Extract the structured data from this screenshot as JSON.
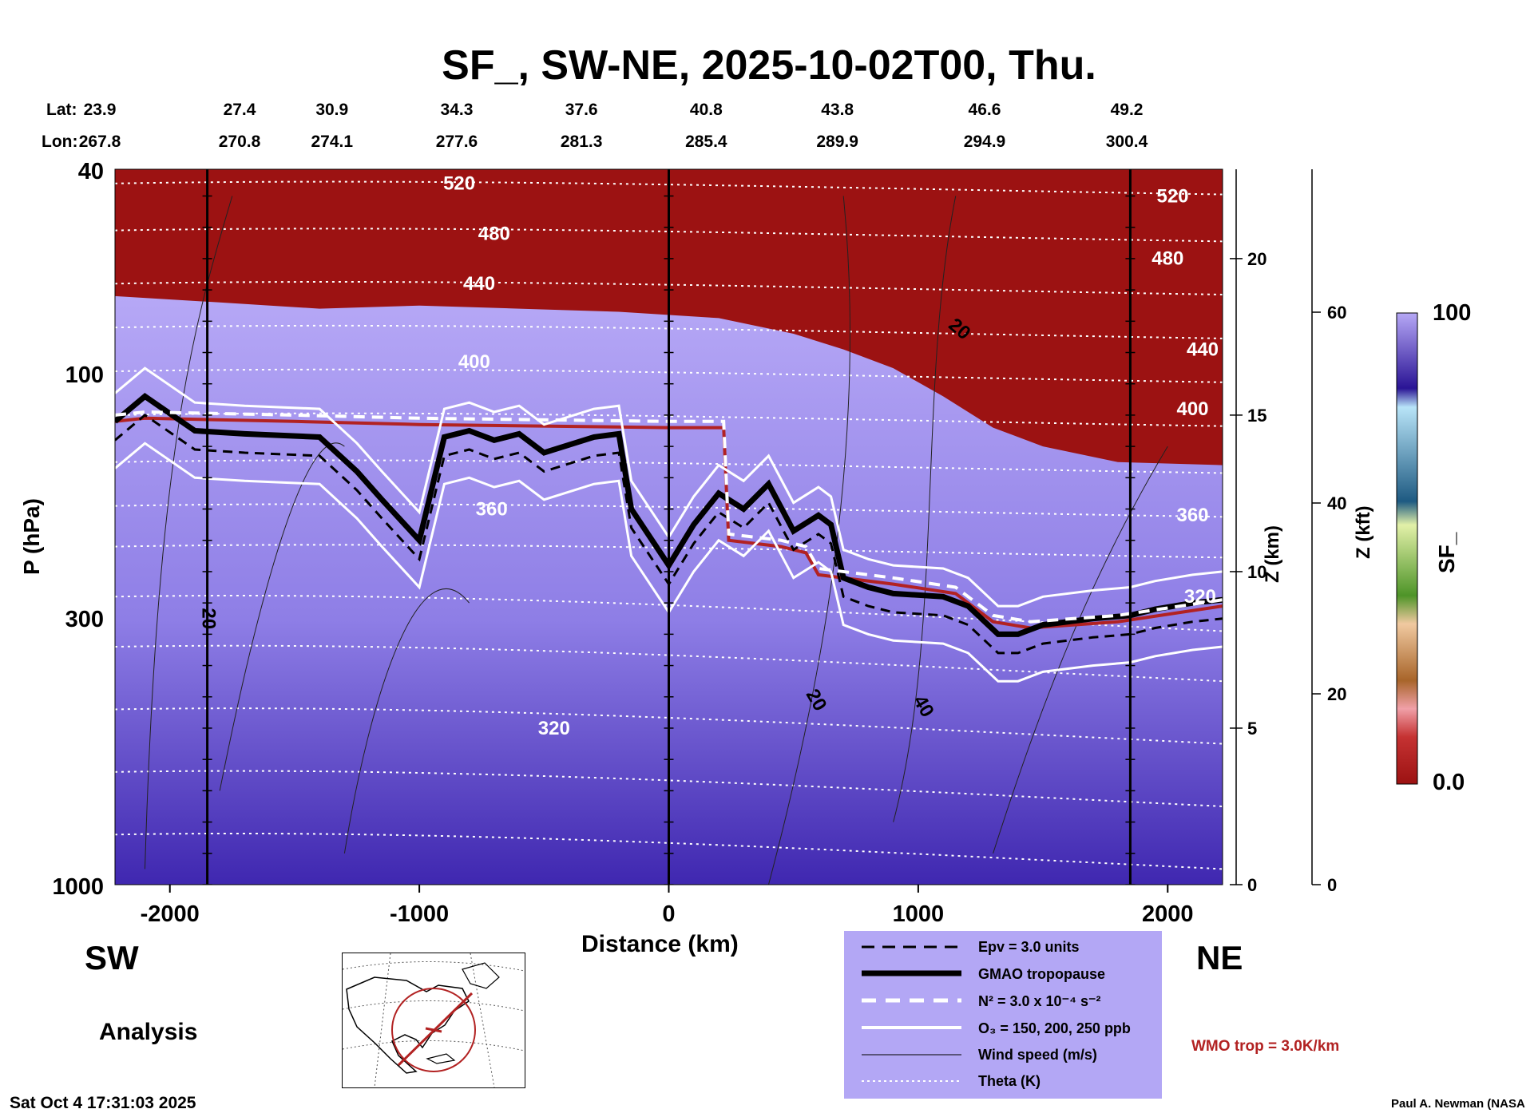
{
  "chart_data": {
    "type": "heatmap",
    "title": "SF_, SW-NE, 2025-10-02T00, Thu.",
    "xlabel": "Distance (km)",
    "ylabel": "P (hPa)",
    "xlim": [
      -2220,
      2220
    ],
    "ylim": [
      1000,
      40
    ],
    "x_ticks": [
      "-2000",
      "-1000",
      "0",
      "1000",
      "2000"
    ],
    "x_tick_values": [
      -2000,
      -1000,
      0,
      1000,
      2000
    ],
    "y_ticks": [
      "40",
      "100",
      "300",
      "1000"
    ],
    "y_tick_values": [
      40,
      100,
      300,
      1000
    ],
    "right_axis_km": {
      "label": "Z (km)",
      "ticks": [
        "20",
        "15",
        "10",
        "5",
        "0"
      ],
      "values": [
        20,
        15,
        10,
        5,
        0
      ]
    },
    "right_axis_kft": {
      "label": "Z (kft)",
      "ticks": [
        "60",
        "40",
        "20",
        "0"
      ],
      "values": [
        60,
        40,
        20,
        0
      ]
    },
    "colorbar": {
      "label": "SF_",
      "max_label": "100",
      "min_label": "0.0"
    },
    "lat_label": "Lat:",
    "lon_label": "Lon:",
    "lat": [
      "23.9",
      "27.4",
      "30.9",
      "34.3",
      "37.6",
      "40.8",
      "43.8",
      "46.6",
      "49.2"
    ],
    "lon": [
      "267.8",
      "270.8",
      "274.1",
      "277.6",
      "281.3",
      "285.4",
      "289.9",
      "294.9",
      "300.4"
    ],
    "theta_labels": [
      "520",
      "480",
      "440",
      "400",
      "360",
      "320",
      "520",
      "480",
      "440",
      "400",
      "360",
      "320"
    ],
    "wind_labels": [
      "20",
      "20",
      "40",
      "20"
    ],
    "tropopause_gmao_km": [
      -2220,
      14.8,
      -2100,
      15.6,
      -1900,
      14.5,
      -1700,
      14.4,
      -1400,
      14.3,
      -1250,
      13.2,
      -1150,
      12.3,
      -1000,
      11.0,
      -900,
      14.3,
      -800,
      14.5,
      -700,
      14.2,
      -600,
      14.4,
      -500,
      13.8,
      -300,
      14.3,
      -200,
      14.4,
      -150,
      12.0,
      0,
      10.2,
      100,
      11.5,
      200,
      12.5,
      300,
      12.0,
      400,
      12.8,
      500,
      11.3,
      600,
      11.8,
      650,
      11.5,
      700,
      9.8,
      800,
      9.5,
      900,
      9.3,
      1100,
      9.2,
      1200,
      8.9,
      1320,
      8.0,
      1400,
      8.0,
      1500,
      8.3,
      1700,
      8.5,
      1850,
      8.6,
      1950,
      8.8,
      2100,
      9.0,
      2220,
      9.1
    ],
    "wmo_tropopause_km": [
      -2220,
      14.8,
      -2100,
      14.9,
      -1500,
      14.8,
      -1000,
      14.7,
      0,
      14.6,
      220,
      14.6,
      240,
      11.0,
      450,
      10.8,
      550,
      10.6,
      600,
      9.9,
      900,
      9.6,
      1150,
      9.3,
      1300,
      8.4,
      1450,
      8.2,
      1800,
      8.4,
      2220,
      8.9
    ],
    "legend": [
      {
        "style": "dashed-black",
        "label": "Epv = 3.0 units"
      },
      {
        "style": "thick-black",
        "label": "GMAO tropopause"
      },
      {
        "style": "dashed-white",
        "label": "N² = 3.0 x 10⁻⁴ s⁻²"
      },
      {
        "style": "solid-white",
        "label": "O₃ = 150, 200, 250 ppb"
      },
      {
        "style": "thin-black",
        "label": "Wind speed (m/s)"
      },
      {
        "style": "dotted-white",
        "label": "Theta (K)"
      }
    ],
    "wmo_note": "WMO trop = 3.0K/km",
    "region_left": "SW",
    "region_right": "NE",
    "analysis_label": "Analysis"
  },
  "footer": {
    "timestamp": "Sat Oct  4 17:31:03 2025",
    "credit": "Paul A. Newman (NASA"
  },
  "colors": {
    "red": "#9c1212",
    "tan": "#c9956a",
    "green": "#8fc24a",
    "blue": "#3d8fc0",
    "purple": "#3a1fa8",
    "lavender": "#b3a7f5",
    "wmo": "#b22222"
  }
}
